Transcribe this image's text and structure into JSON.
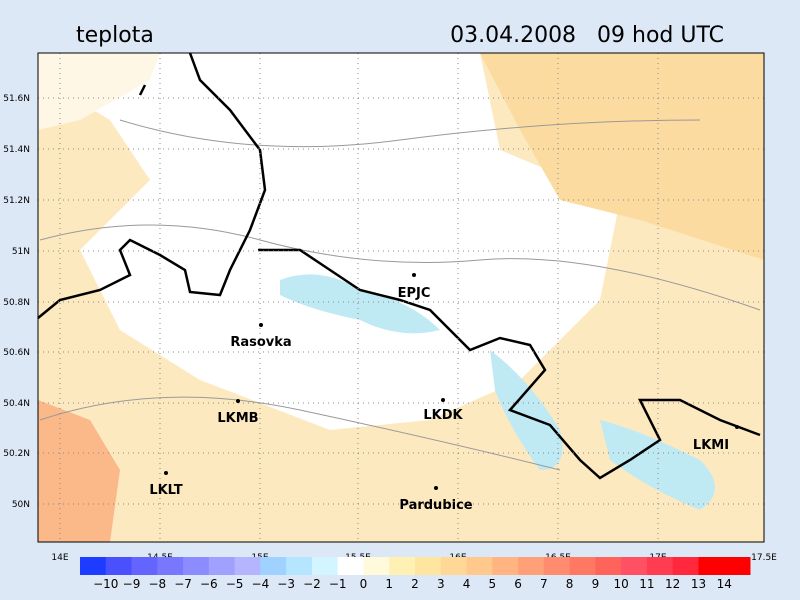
{
  "header": {
    "title": "teplota",
    "datetime": "03.04.2008   09 hod UTC"
  },
  "map": {
    "lat_labels": [
      "51.6N",
      "51.4N",
      "51.2N",
      "51N",
      "50.8N",
      "50.6N",
      "50.4N",
      "50.2N",
      "50N"
    ],
    "lon_labels": [
      "14E",
      "14.5E",
      "15E",
      "15.5E",
      "16E",
      "16.5E",
      "17E",
      "17.5E"
    ],
    "stations": [
      "EPJC",
      "Rasovka",
      "LKMB",
      "LKDK",
      "LKMI",
      "LKLT",
      "Pardubice"
    ]
  },
  "colorbar": {
    "labels": [
      "−10",
      "−9",
      "−8",
      "−7",
      "−6",
      "−5",
      "−4",
      "−3",
      "−2",
      "−1",
      "0",
      "1",
      "2",
      "3",
      "4",
      "5",
      "6",
      "7",
      "8",
      "9",
      "10",
      "11",
      "12",
      "13",
      "14"
    ],
    "colors": [
      "#1e3cff",
      "#4b50ff",
      "#6464ff",
      "#7878ff",
      "#8c8cff",
      "#a0a0ff",
      "#b4b4ff",
      "#a0d2ff",
      "#b4e6ff",
      "#d2f5ff",
      "#ffffff",
      "#fffadc",
      "#fff0b4",
      "#ffe6a0",
      "#ffd796",
      "#ffc88c",
      "#ffb482",
      "#ffa078",
      "#ff8c6e",
      "#ff7864",
      "#ff645a",
      "#ff5064",
      "#ff3c50",
      "#ff283c",
      "#ff0000",
      "#ff0000"
    ]
  }
}
